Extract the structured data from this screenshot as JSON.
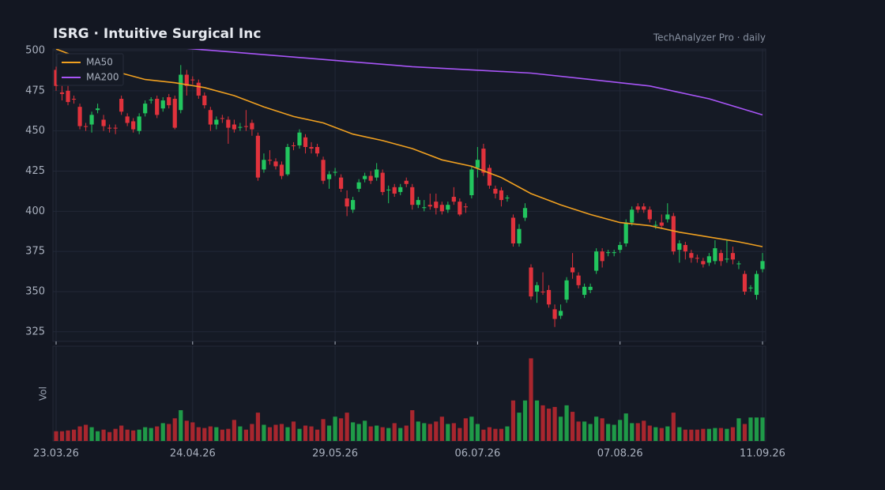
{
  "chart_data": {
    "type": "candlestick",
    "title": "ISRG  ·  Intuitive Surgical Inc",
    "subtitle": "TechAnalyzer Pro · daily",
    "volume_label": "Vol",
    "categories": [
      "23.03.26",
      null,
      null,
      null,
      null,
      null,
      null,
      null,
      null,
      null,
      null,
      null,
      null,
      null,
      null,
      null,
      null,
      null,
      null,
      null,
      null,
      null,
      null,
      "24.04.26",
      null,
      null,
      null,
      null,
      null,
      null,
      null,
      null,
      null,
      null,
      null,
      null,
      null,
      null,
      null,
      null,
      null,
      null,
      null,
      null,
      null,
      null,
      null,
      "29.05.26",
      null,
      null,
      null,
      null,
      null,
      null,
      null,
      null,
      null,
      null,
      null,
      null,
      null,
      null,
      null,
      null,
      null,
      null,
      null,
      null,
      null,
      null,
      null,
      "06.07.26",
      null,
      null,
      null,
      null,
      null,
      null,
      null,
      null,
      null,
      null,
      null,
      null,
      null,
      null,
      null,
      null,
      null,
      null,
      null,
      null,
      null,
      null,
      null,
      "07.08.26",
      null,
      null,
      null,
      null,
      null,
      null,
      null,
      null,
      null,
      null,
      null,
      null,
      null,
      null,
      null,
      null,
      null,
      null,
      null,
      null,
      null,
      null,
      null,
      "11.09.26"
    ],
    "open": [
      488,
      474,
      475,
      470,
      465,
      453,
      454,
      463,
      457,
      452,
      452,
      470,
      459,
      456,
      450,
      461,
      469,
      470,
      464,
      471,
      470,
      463,
      485,
      482,
      480,
      472,
      463,
      454,
      458,
      457,
      454,
      452,
      453,
      455,
      447,
      426,
      432,
      431,
      429,
      423,
      441,
      441,
      446,
      440,
      440,
      432,
      420,
      424,
      421,
      408,
      401,
      414,
      420,
      422,
      421,
      424,
      413,
      415,
      412,
      419,
      415,
      404,
      402,
      404,
      406,
      404,
      401,
      409,
      406,
      403,
      410,
      427,
      439,
      427,
      414,
      413,
      408,
      396,
      380,
      396,
      365,
      350,
      350,
      351,
      339,
      335,
      345,
      365,
      360,
      348,
      351,
      363,
      375,
      374,
      374,
      376,
      380,
      393,
      403,
      403,
      401,
      391,
      393,
      395,
      397,
      376,
      379,
      374,
      371,
      369,
      368,
      369,
      374,
      370,
      374,
      367,
      361,
      352,
      348,
      364
    ],
    "high": [
      490,
      478,
      478,
      472,
      467,
      455,
      462,
      467,
      460,
      454,
      454,
      472,
      461,
      458,
      461,
      469,
      471,
      472,
      471,
      473,
      472,
      491,
      488,
      484,
      482,
      474,
      465,
      459,
      460,
      459,
      457,
      455,
      463,
      457,
      449,
      436,
      438,
      433,
      431,
      442,
      443,
      451,
      448,
      443,
      442,
      434,
      425,
      427,
      423,
      413,
      409,
      420,
      424,
      425,
      430,
      426,
      416,
      417,
      417,
      421,
      417,
      409,
      407,
      411,
      411,
      406,
      406,
      415,
      408,
      405,
      428,
      440,
      442,
      429,
      416,
      415,
      410,
      398,
      392,
      405,
      367,
      356,
      362,
      354,
      342,
      342,
      359,
      374,
      362,
      355,
      355,
      377,
      377,
      376,
      376,
      381,
      395,
      403,
      405,
      405,
      403,
      394,
      398,
      405,
      399,
      382,
      381,
      376,
      373,
      371,
      374,
      382,
      376,
      382,
      378,
      369,
      363,
      354,
      363,
      374
    ],
    "low": [
      475,
      469,
      466,
      467,
      451,
      450,
      449,
      461,
      450,
      449,
      448,
      460,
      453,
      449,
      448,
      459,
      467,
      458,
      462,
      464,
      451,
      461,
      472,
      479,
      470,
      464,
      450,
      451,
      455,
      442,
      449,
      450,
      450,
      447,
      419,
      424,
      429,
      426,
      420,
      422,
      438,
      439,
      436,
      436,
      434,
      417,
      414,
      422,
      412,
      397,
      399,
      412,
      418,
      417,
      419,
      410,
      405,
      409,
      410,
      415,
      401,
      402,
      400,
      401,
      398,
      398,
      399,
      404,
      397,
      399,
      408,
      421,
      422,
      414,
      408,
      403,
      406,
      378,
      378,
      394,
      345,
      343,
      348,
      340,
      328,
      333,
      343,
      358,
      352,
      346,
      349,
      361,
      365,
      372,
      372,
      374,
      378,
      391,
      399,
      399,
      393,
      389,
      389,
      393,
      373,
      368,
      370,
      368,
      368,
      365,
      366,
      367,
      366,
      368,
      367,
      364,
      348,
      350,
      345,
      362
    ],
    "close": [
      478,
      473,
      468,
      469.5,
      453,
      452.5,
      460,
      464,
      453,
      451.5,
      451.5,
      462,
      455,
      451,
      459,
      467,
      469.5,
      460,
      469,
      466,
      452,
      485,
      478,
      481.5,
      472,
      466,
      454,
      457,
      457.5,
      452,
      451,
      452.5,
      452.5,
      451,
      421,
      432,
      431.5,
      428,
      422,
      440,
      440.5,
      449,
      440,
      439,
      436,
      419,
      423,
      424.5,
      414,
      403,
      407,
      418,
      422,
      419,
      426,
      412,
      413.5,
      411,
      415,
      417,
      404,
      407,
      402.5,
      403,
      402,
      400,
      404,
      406,
      398,
      402.5,
      426,
      432,
      424,
      416,
      411,
      407,
      408.5,
      380,
      389,
      402,
      347,
      354,
      349.5,
      342,
      333,
      338,
      357,
      362,
      354,
      353,
      353,
      375,
      369,
      374.5,
      374.5,
      379,
      393,
      401,
      401,
      401,
      395,
      391.5,
      391,
      398,
      375,
      380,
      375,
      371,
      370.5,
      367,
      372,
      377,
      369,
      370.5,
      370,
      367.5,
      350,
      352.5,
      361,
      369
    ],
    "volume": [
      12,
      12,
      13,
      14,
      18,
      20,
      17,
      12,
      14,
      11,
      15,
      19,
      14,
      13,
      14,
      17,
      16,
      18,
      22,
      21,
      28,
      38,
      25,
      23,
      17,
      16,
      18,
      17,
      14,
      15,
      26,
      18,
      14,
      21,
      35,
      20,
      17,
      20,
      21,
      17,
      24,
      15,
      19,
      18,
      14,
      27,
      19,
      30,
      28,
      35,
      23,
      21,
      25,
      18,
      19,
      17,
      16,
      22,
      16,
      19,
      38,
      24,
      22,
      21,
      24,
      30,
      21,
      22,
      16,
      28,
      30,
      21,
      14,
      17,
      15,
      15,
      18,
      50,
      35,
      50,
      102,
      50,
      44,
      40,
      42,
      30,
      44,
      36,
      24,
      24,
      21,
      30,
      28,
      21,
      20,
      26,
      34,
      22,
      22,
      25,
      19,
      17,
      16,
      18,
      35,
      17,
      14,
      14,
      14,
      15,
      15,
      16,
      16,
      15,
      17,
      28,
      21,
      29,
      29,
      29
    ],
    "up_color": "#22c55e",
    "down_color": "#e0323c",
    "volume_up_color": "#1f9a48",
    "volume_down_color": "#a8262e",
    "series": [
      {
        "name": "MA50",
        "color": "#f0a020",
        "x": [
          0,
          5,
          10,
          15,
          20,
          25,
          30,
          35,
          40,
          45,
          50,
          55,
          60,
          65,
          70,
          75,
          80,
          85,
          90,
          95,
          100,
          105,
          110,
          115,
          119
        ],
        "values": [
          501,
          494,
          487,
          482,
          480,
          477,
          472,
          465,
          459,
          455,
          448,
          444,
          439,
          432,
          428,
          421,
          411,
          404,
          398,
          393,
          391,
          387,
          384,
          381,
          378
        ]
      },
      {
        "name": "MA200",
        "color": "#a855f7",
        "x": [
          20,
          30,
          40,
          50,
          60,
          70,
          80,
          90,
          100,
          110,
          119
        ],
        "values": [
          502,
          499,
          496,
          493,
          490,
          488,
          486,
          482,
          478,
          470,
          460
        ]
      }
    ],
    "ylim": [
      319,
      501
    ],
    "yticks": [
      325,
      350,
      375,
      400,
      425,
      450,
      475,
      500
    ],
    "vlim": [
      0,
      117
    ],
    "grid": true,
    "legend": "upper left"
  }
}
